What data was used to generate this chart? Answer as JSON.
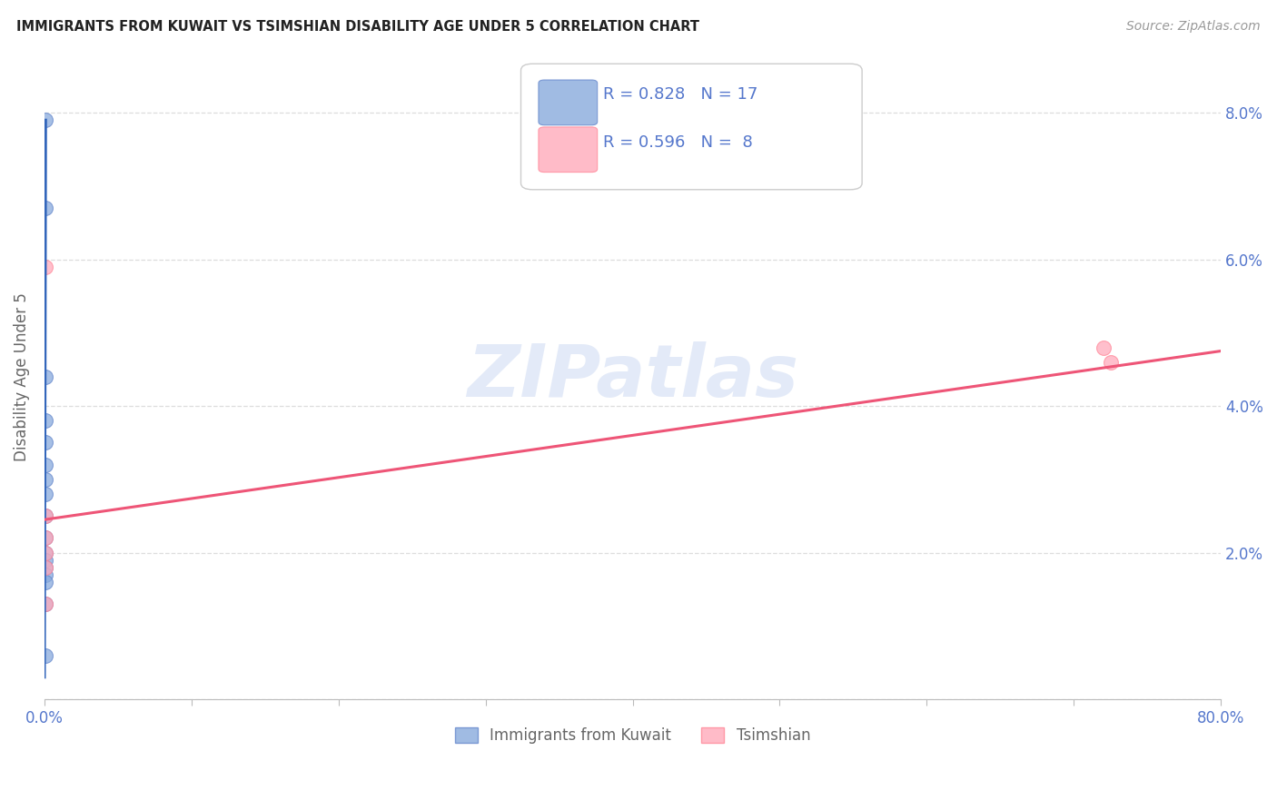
{
  "title": "IMMIGRANTS FROM KUWAIT VS TSIMSHIAN DISABILITY AGE UNDER 5 CORRELATION CHART",
  "source": "Source: ZipAtlas.com",
  "ylabel": "Disability Age Under 5",
  "watermark": "ZIPatlas",
  "xlim": [
    0.0,
    0.8
  ],
  "ylim": [
    0.0,
    0.088
  ],
  "xticks": [
    0.0,
    0.1,
    0.2,
    0.3,
    0.4,
    0.5,
    0.6,
    0.7,
    0.8
  ],
  "xticklabels": [
    "0.0%",
    "",
    "",
    "",
    "",
    "",
    "",
    "",
    "80.0%"
  ],
  "yticks": [
    0.0,
    0.02,
    0.04,
    0.06,
    0.08
  ],
  "yticklabels_right": [
    "",
    "2.0%",
    "4.0%",
    "6.0%",
    "8.0%"
  ],
  "blue_scatter_x": [
    0.0008,
    0.0008,
    0.0008,
    0.0008,
    0.0008,
    0.0008,
    0.0008,
    0.0008,
    0.0008,
    0.0008,
    0.0008,
    0.0008,
    0.0008,
    0.0008,
    0.0008,
    0.0008,
    0.0008
  ],
  "blue_scatter_y": [
    0.079,
    0.067,
    0.044,
    0.038,
    0.035,
    0.032,
    0.03,
    0.028,
    0.025,
    0.022,
    0.02,
    0.019,
    0.018,
    0.017,
    0.016,
    0.013,
    0.006
  ],
  "pink_scatter_x": [
    0.0008,
    0.0008,
    0.0008,
    0.72,
    0.725,
    0.0008,
    0.0008,
    0.0008
  ],
  "pink_scatter_y": [
    0.059,
    0.025,
    0.022,
    0.048,
    0.046,
    0.02,
    0.018,
    0.013
  ],
  "blue_line_x": [
    0.0,
    0.0008
  ],
  "blue_line_y": [
    0.003,
    0.079
  ],
  "pink_line_x": [
    0.0,
    0.8
  ],
  "pink_line_y": [
    0.0245,
    0.0475
  ],
  "blue_R": "0.828",
  "blue_N": "17",
  "pink_R": "0.596",
  "pink_N": "8",
  "blue_color": "#88AADD",
  "pink_color": "#FFAABB",
  "blue_scatter_edge": "#6688CC",
  "pink_scatter_edge": "#FF8899",
  "blue_line_color": "#3366BB",
  "pink_line_color": "#EE5577",
  "axis_label_color": "#5577CC",
  "ylabel_color": "#666666",
  "grid_color": "#DDDDDD",
  "background_color": "#FFFFFF",
  "title_color": "#222222",
  "source_color": "#999999",
  "watermark_color": "#BBCCEE",
  "bottom_legend_color": "#666666"
}
